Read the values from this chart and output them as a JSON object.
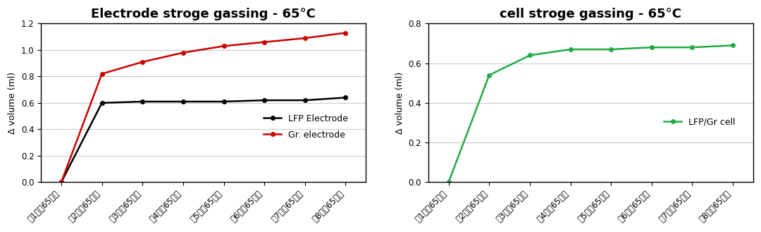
{
  "left_title": "Electrode stroge gassing - 65°C",
  "right_title": "cell stroge gassing - 65°C",
  "x_labels": [
    "第1天（65度）",
    "第2天（65度）",
    "第3天（65度）",
    "第4天（65度）",
    "第5天（65度）",
    "第6天（65度）",
    "第7天（65度）",
    "第8天（65度）"
  ],
  "lfp_electrode": [
    0.0,
    0.6,
    0.61,
    0.61,
    0.61,
    0.62,
    0.62,
    0.64
  ],
  "gr_electrode": [
    0.0,
    0.82,
    0.91,
    0.98,
    1.03,
    1.06,
    1.09,
    1.13
  ],
  "lfp_gr_cell": [
    0.0,
    0.54,
    0.64,
    0.67,
    0.67,
    0.68,
    0.68,
    0.69
  ],
  "lfp_color": "#000000",
  "gr_color": "#cc0000",
  "cell_color": "#22aa44",
  "left_ylim": [
    0.0,
    1.2
  ],
  "right_ylim": [
    0.0,
    0.8
  ],
  "left_yticks": [
    0.0,
    0.2,
    0.4,
    0.6,
    0.8,
    1.0,
    1.2
  ],
  "right_yticks": [
    0.0,
    0.2,
    0.4,
    0.6,
    0.8
  ],
  "ylabel": "Δ volume (ml)",
  "left_legend": [
    {
      "label": "LFP Electrode",
      "color": "#000000"
    },
    {
      "label": "Gr. electrode",
      "color": "#cc0000"
    }
  ],
  "right_legend": [
    {
      "label": "LFP/Gr cell",
      "color": "#22aa44"
    }
  ],
  "bg_color": "#ffffff",
  "grid_color": "#cccccc",
  "marker": "o",
  "markersize": 4,
  "linewidth": 1.8,
  "title_fontsize": 13,
  "label_fontsize": 9,
  "tick_fontsize": 8.5,
  "legend_fontsize": 9
}
